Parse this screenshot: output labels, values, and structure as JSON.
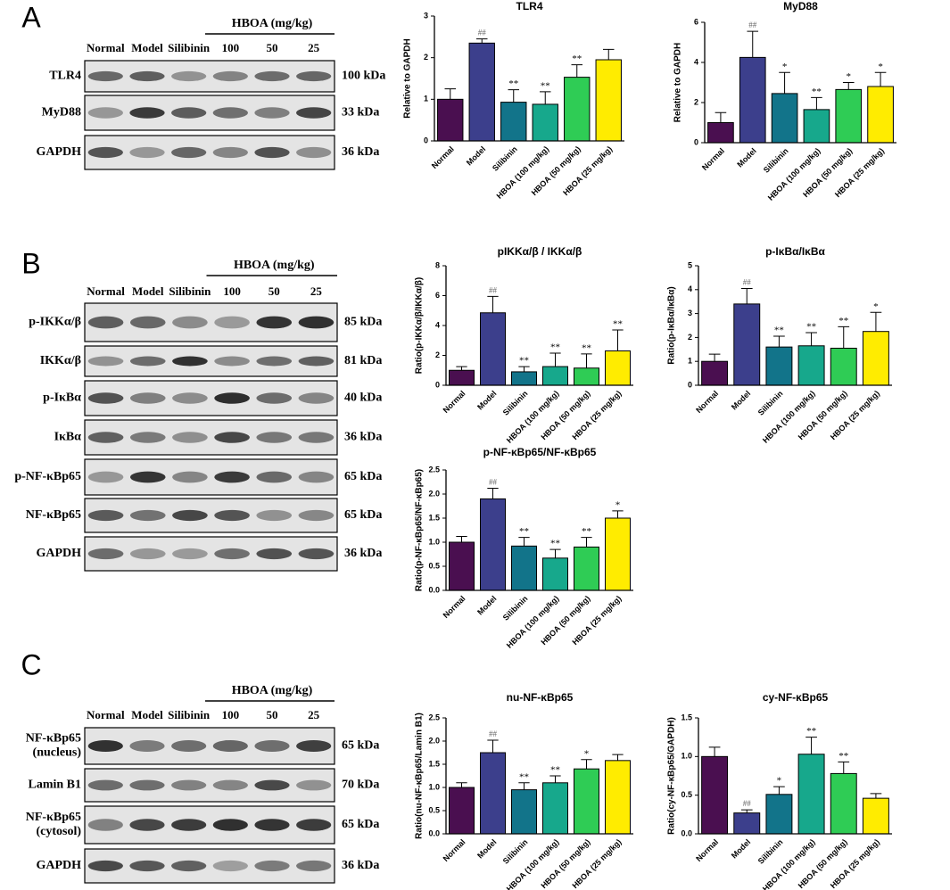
{
  "panels": [
    {
      "letter": "A",
      "header": "HBOA (mg/kg)",
      "lanes": [
        "Normal",
        "Model",
        "Silibinin",
        "100",
        "50",
        "25"
      ],
      "rows": [
        {
          "label": "TLR4",
          "kda": "100 kDa"
        },
        {
          "label": "MyD88",
          "kda": "33 kDa"
        },
        {
          "label": "GAPDH",
          "kda": "36 kDa"
        }
      ]
    },
    {
      "letter": "B",
      "header": "HBOA (mg/kg)",
      "lanes": [
        "Normal",
        "Model",
        "Silibinin",
        "100",
        "50",
        "25"
      ],
      "rows": [
        {
          "label": "p-IKKα/β",
          "kda": "85 kDa"
        },
        {
          "label": "IKKα/β",
          "kda": "81 kDa"
        },
        {
          "label": "p-IκBα",
          "kda": "40 kDa"
        },
        {
          "label": "IκBα",
          "kda": "36 kDa"
        },
        {
          "label": "p-NF-κBp65",
          "kda": "65 kDa"
        },
        {
          "label": "NF-κBp65",
          "kda": "65 kDa"
        },
        {
          "label": "GAPDH",
          "kda": "36 kDa"
        }
      ]
    },
    {
      "letter": "C",
      "header": "HBOA (mg/kg)",
      "lanes": [
        "Normal",
        "Model",
        "Silibinin",
        "100",
        "50",
        "25"
      ],
      "rows": [
        {
          "label": [
            "NF-κBp65",
            "(nucleus)"
          ],
          "kda": "65 kDa"
        },
        {
          "label": "Lamin B1",
          "kda": "70 kDa"
        },
        {
          "label": [
            "NF-κBp65",
            "(cytosol)"
          ],
          "kda": "65 kDa"
        },
        {
          "label": "GAPDH",
          "kda": "36 kDa"
        }
      ]
    }
  ],
  "chart_data": [
    {
      "type": "bar",
      "title": "TLR4",
      "ylabel": "Relative to GAPDH",
      "categories": [
        "Normal",
        "Model",
        "Silibinin",
        "HBOA (100 mg/kg)",
        "HBOA (50 mg/kg)",
        "HBOA (25 mg/kg)"
      ],
      "values": [
        1.0,
        2.35,
        0.93,
        0.88,
        1.53,
        1.95
      ],
      "errors": [
        0.25,
        0.1,
        0.3,
        0.3,
        0.3,
        0.25
      ],
      "annotations": [
        null,
        "##",
        "**",
        "**",
        "**",
        null
      ],
      "colors": [
        "#4a0f50",
        "#3c3f8c",
        "#12748a",
        "#17a88c",
        "#2fcc55",
        "#ffec00"
      ],
      "ylim": [
        0,
        3
      ],
      "yticks": [
        0,
        1,
        2,
        3
      ]
    },
    {
      "type": "bar",
      "title": "MyD88",
      "ylabel": "Relative to GAPDH",
      "categories": [
        "Normal",
        "Model",
        "Silibinin",
        "HBOA (100 mg/kg)",
        "HBOA (50 mg/kg)",
        "HBOA (25 mg/kg)"
      ],
      "values": [
        1.0,
        4.25,
        2.45,
        1.65,
        2.65,
        2.8
      ],
      "errors": [
        0.5,
        1.3,
        1.05,
        0.6,
        0.35,
        0.7
      ],
      "annotations": [
        null,
        "##",
        "*",
        "**",
        "*",
        "*"
      ],
      "colors": [
        "#4a0f50",
        "#3c3f8c",
        "#12748a",
        "#17a88c",
        "#2fcc55",
        "#ffec00"
      ],
      "ylim": [
        0,
        6
      ],
      "yticks": [
        0,
        2,
        4,
        6
      ]
    },
    {
      "type": "bar",
      "title": "pIKKα/β / IKKα/β",
      "ylabel": "Ratio(p-IKKα/β/IKKα/β)",
      "categories": [
        "Normal",
        "Model",
        "Silibinin",
        "HBOA (100 mg/kg)",
        "HBOA (50 mg/kg)",
        "HBOA (25 mg/kg)"
      ],
      "values": [
        1.0,
        4.85,
        0.9,
        1.25,
        1.15,
        2.3
      ],
      "errors": [
        0.25,
        1.1,
        0.35,
        0.9,
        0.95,
        1.4
      ],
      "annotations": [
        null,
        "##",
        "**",
        "**",
        "**",
        "**"
      ],
      "colors": [
        "#4a0f50",
        "#3c3f8c",
        "#12748a",
        "#17a88c",
        "#2fcc55",
        "#ffec00"
      ],
      "ylim": [
        0,
        8
      ],
      "yticks": [
        0,
        2,
        4,
        6,
        8
      ]
    },
    {
      "type": "bar",
      "title": "p-IκBα/IκBα",
      "ylabel": "Ratio(p-IκBα/IκBα)",
      "categories": [
        "Normal",
        "Model",
        "Silibinin",
        "HBOA (100 mg/kg)",
        "HBOA (50 mg/kg)",
        "HBOA (25 mg/kg)"
      ],
      "values": [
        1.0,
        3.4,
        1.6,
        1.65,
        1.55,
        2.25
      ],
      "errors": [
        0.3,
        0.65,
        0.45,
        0.55,
        0.9,
        0.8
      ],
      "annotations": [
        null,
        "##",
        "**",
        "**",
        "**",
        "*"
      ],
      "colors": [
        "#4a0f50",
        "#3c3f8c",
        "#12748a",
        "#17a88c",
        "#2fcc55",
        "#ffec00"
      ],
      "ylim": [
        0,
        5
      ],
      "yticks": [
        0,
        1,
        2,
        3,
        4,
        5
      ]
    },
    {
      "type": "bar",
      "title": "p-NF-κBp65/NF-κBp65",
      "ylabel": "Ratio(p-NF-κBp65/NF-κBp65)",
      "categories": [
        "Normal",
        "Model",
        "Silibinin",
        "HBOA (100 mg/kg)",
        "HBOA (50 mg/kg)",
        "HBOA (25 mg/kg)"
      ],
      "values": [
        1.0,
        1.9,
        0.92,
        0.67,
        0.9,
        1.5
      ],
      "errors": [
        0.12,
        0.22,
        0.18,
        0.18,
        0.2,
        0.15
      ],
      "annotations": [
        null,
        "##",
        "**",
        "**",
        "**",
        "*"
      ],
      "colors": [
        "#4a0f50",
        "#3c3f8c",
        "#12748a",
        "#17a88c",
        "#2fcc55",
        "#ffec00"
      ],
      "ylim": [
        0,
        2.5
      ],
      "yticks": [
        {
          "value": 0,
          "label": "0.0"
        },
        0.5,
        {
          "value": 1,
          "label": "1.0"
        },
        1.5,
        {
          "value": 2,
          "label": "2.0"
        },
        2.5
      ]
    },
    {
      "type": "bar",
      "title": "nu-NF-κBp65",
      "ylabel": "Ratio(nu-NF-κBp65/Lamin B1)",
      "categories": [
        "Normal",
        "Model",
        "Silibinin",
        "HBOA (100 mg/kg)",
        "HBOA (50 mg/kg)",
        "HBOA (25 mg/kg)"
      ],
      "values": [
        1.0,
        1.75,
        0.95,
        1.1,
        1.4,
        1.58
      ],
      "errors": [
        0.1,
        0.27,
        0.15,
        0.15,
        0.2,
        0.13
      ],
      "annotations": [
        null,
        "##",
        "**",
        "**",
        "*",
        null
      ],
      "colors": [
        "#4a0f50",
        "#3c3f8c",
        "#12748a",
        "#17a88c",
        "#2fcc55",
        "#ffec00"
      ],
      "ylim": [
        0,
        2.5
      ],
      "yticks": [
        {
          "value": 0,
          "label": "0.0"
        },
        0.5,
        {
          "value": 1,
          "label": "1.0"
        },
        1.5,
        {
          "value": 2,
          "label": "2.0"
        },
        2.5
      ]
    },
    {
      "type": "bar",
      "title": "cy-NF-κBp65",
      "ylabel": "Ratio(cy-NF-κBp65/GAPDH)",
      "categories": [
        "Normal",
        "Model",
        "Silibinin",
        "HBOA (100 mg/kg)",
        "HBOA (50 mg/kg)",
        "HBOA (25 mg/kg)"
      ],
      "values": [
        1.0,
        0.27,
        0.51,
        1.03,
        0.78,
        0.46
      ],
      "errors": [
        0.12,
        0.04,
        0.1,
        0.22,
        0.15,
        0.06
      ],
      "annotations": [
        null,
        "##",
        "*",
        "**",
        "**",
        null
      ],
      "colors": [
        "#4a0f50",
        "#3c3f8c",
        "#12748a",
        "#17a88c",
        "#2fcc55",
        "#ffec00"
      ],
      "ylim": [
        0,
        1.5
      ],
      "yticks": [
        {
          "value": 0,
          "label": "0.0"
        },
        0.5,
        {
          "value": 1,
          "label": "1.0"
        },
        1.5
      ]
    }
  ]
}
